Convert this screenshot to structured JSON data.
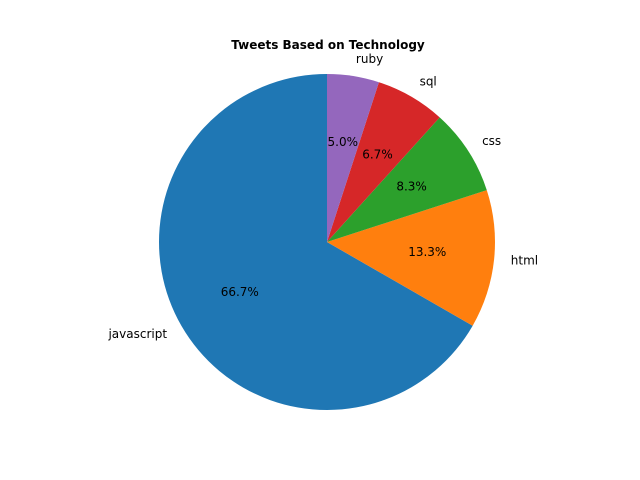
{
  "chart_data": {
    "type": "pie",
    "title": "Tweets Based on Technology",
    "start_angle_deg": 90,
    "direction": "counterclockwise",
    "slices": [
      {
        "label": "javascript",
        "value": 66.7,
        "pct_label": "66.7%",
        "color": "#1f77b4"
      },
      {
        "label": "html",
        "value": 13.3,
        "pct_label": "13.3%",
        "color": "#ff7f0e"
      },
      {
        "label": "css",
        "value": 8.3,
        "pct_label": "8.3%",
        "color": "#2ca02c"
      },
      {
        "label": "sql",
        "value": 6.7,
        "pct_label": "6.7%",
        "color": "#d62728"
      },
      {
        "label": "ruby",
        "value": 5.0,
        "pct_label": "5.0%",
        "color": "#9467bd"
      }
    ]
  }
}
